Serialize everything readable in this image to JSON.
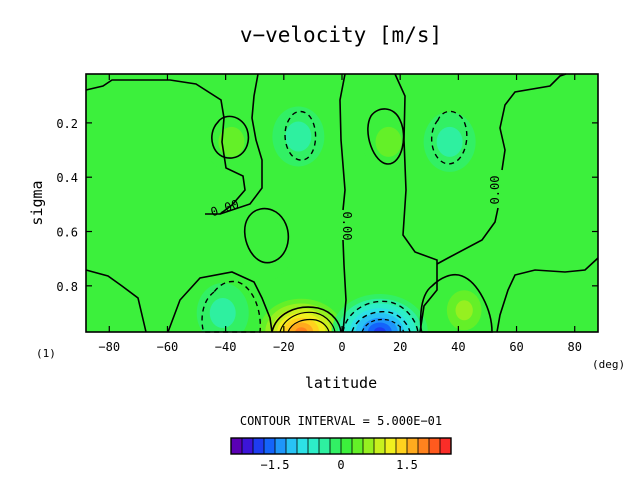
{
  "chart_data": {
    "type": "heatmap",
    "title": "v−velocity [m/s]",
    "xlabel": "latitude",
    "ylabel": "sigma",
    "x_unit": "(deg)",
    "corner_label": "(1)",
    "xlim": [
      -88,
      88
    ],
    "ylim": [
      0.97,
      0.02
    ],
    "x_ticks": [
      -80,
      -60,
      -40,
      -20,
      0,
      20,
      40,
      60,
      80
    ],
    "x_tick_labels": [
      "−80",
      "−60",
      "−40",
      "−20",
      "0",
      "20",
      "40",
      "60",
      "80"
    ],
    "y_ticks": [
      0.2,
      0.4,
      0.6,
      0.8
    ],
    "y_tick_labels": [
      "0.2",
      "0.4",
      "0.6",
      "0.8"
    ],
    "contour_interval_text": "CONTOUR INTERVAL = 5.000E−01",
    "contour_labels": [
      "0.00",
      "0.00",
      "0.00"
    ],
    "colorbar": {
      "levels": [
        -2.5,
        -2.25,
        -2.0,
        -1.75,
        -1.5,
        -1.25,
        -1.0,
        -0.75,
        -0.5,
        -0.25,
        0,
        0.25,
        0.5,
        0.75,
        1.0,
        1.25,
        1.5,
        1.75,
        2.0,
        2.25,
        2.5
      ],
      "tick_values": [
        -1.5,
        0,
        1.5
      ],
      "tick_labels": [
        "−1.5",
        "0",
        "1.5"
      ],
      "colors": [
        "#5a00b4",
        "#3c14d8",
        "#1e3cf0",
        "#1464fa",
        "#1e96fa",
        "#28c3f5",
        "#2de1e6",
        "#2deec8",
        "#2ef0a0",
        "#32f064",
        "#3cf03c",
        "#64f028",
        "#96f020",
        "#c8f01e",
        "#f0f01e",
        "#ffd21e",
        "#ffaa1e",
        "#ff821e",
        "#ff5a1e",
        "#fa2d28"
      ]
    },
    "features": [
      {
        "name": "low-level positive cell",
        "lat": -14,
        "sigma": 0.97,
        "value": 2.0
      },
      {
        "name": "low-level negative cell",
        "lat": 13,
        "sigma": 0.97,
        "value": -2.0
      },
      {
        "name": "upper positive cell west",
        "lat": -38,
        "sigma": 0.27,
        "value": 0.45
      },
      {
        "name": "upper negative cell west",
        "lat": -15,
        "sigma": 0.25,
        "value": -0.38
      },
      {
        "name": "upper positive cell east",
        "lat": 16,
        "sigma": 0.27,
        "value": 0.45
      },
      {
        "name": "upper negative cell east",
        "lat": 37,
        "sigma": 0.27,
        "value": -0.38
      },
      {
        "name": "mid positive cell",
        "lat": -26,
        "sigma": 0.67,
        "value": 0.35
      },
      {
        "name": "low negative cell west",
        "lat": -41,
        "sigma": 0.9,
        "value": -0.45
      },
      {
        "name": "low positive cell east",
        "lat": 42,
        "sigma": 0.89,
        "value": 0.65
      }
    ]
  }
}
